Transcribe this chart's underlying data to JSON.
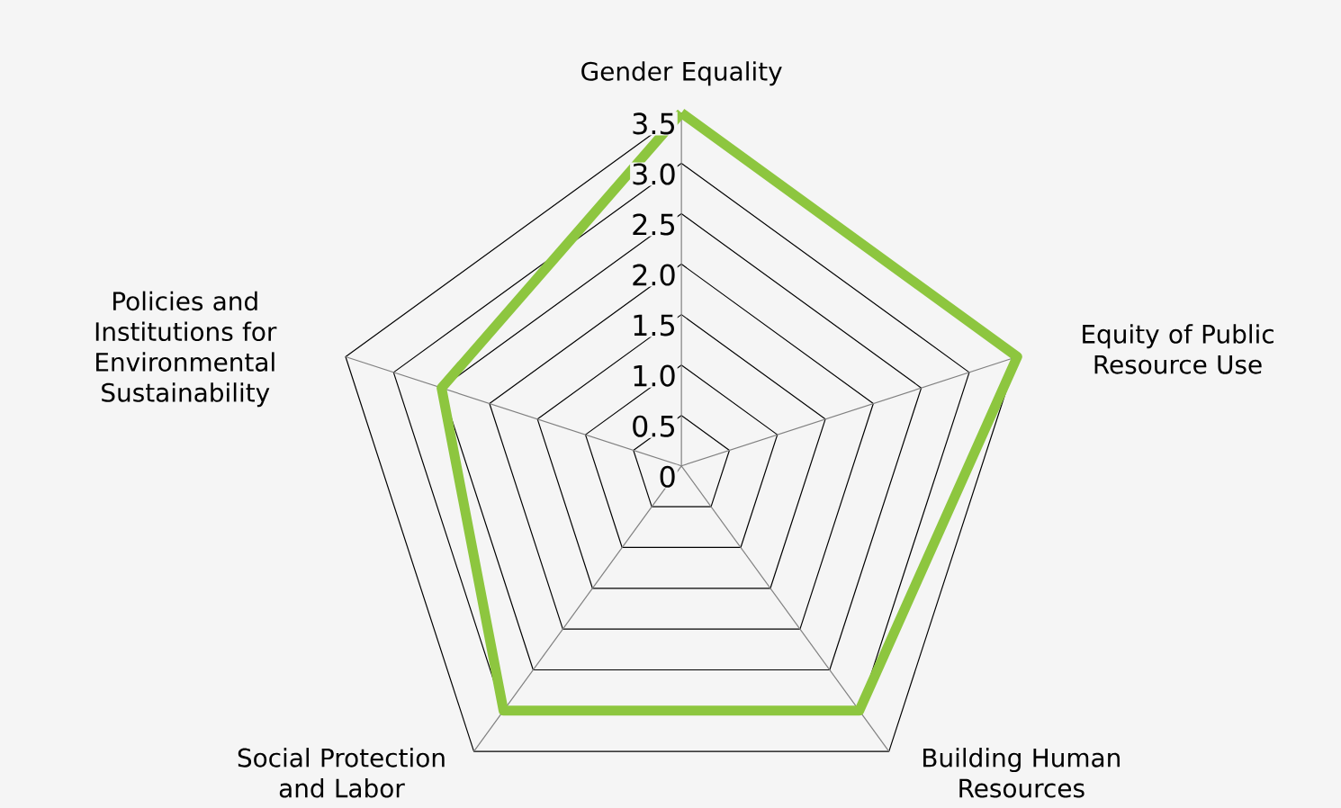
{
  "chart_data": {
    "type": "radar",
    "categories": [
      "Gender Equality",
      "Equity of Public Resource Use",
      "Building Human Resources",
      "Social Protection and Labor",
      "Policies and Institutions for Environmental Sustainability"
    ],
    "series": [
      {
        "color": "#8dc63f",
        "values": [
          3.5,
          3.5,
          3.0,
          3.0,
          2.5
        ]
      }
    ],
    "ylim": [
      0,
      3.5
    ],
    "yticks": [
      0,
      0.5,
      {
        "value": 1,
        "label": "1.0"
      },
      1.5,
      {
        "value": 2,
        "label": "2.0"
      },
      2.5,
      {
        "value": 3,
        "label": "3.0"
      },
      3.5
    ],
    "grid": true
  }
}
